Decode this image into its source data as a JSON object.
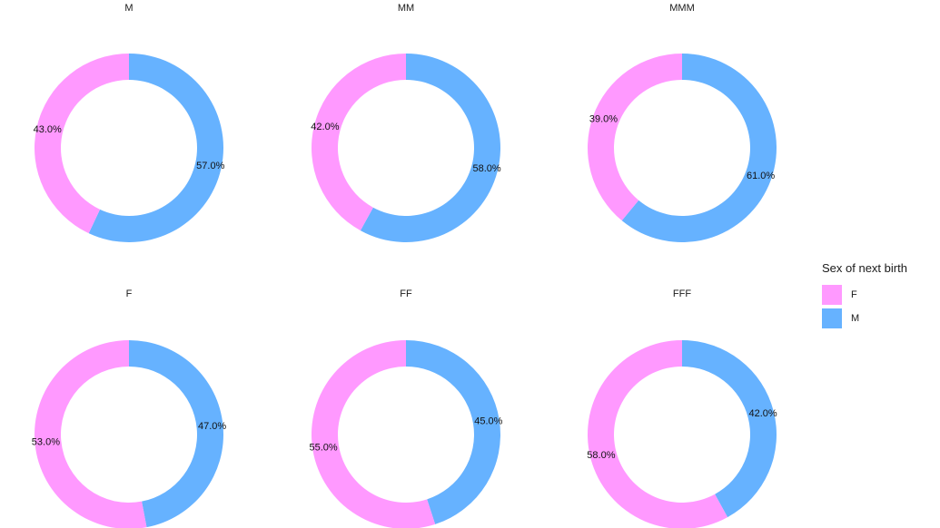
{
  "chart_data": {
    "type": "pie",
    "panels": [
      {
        "title": "M",
        "slices": [
          {
            "category": "F",
            "value": 43.0,
            "label": "43.0%"
          },
          {
            "category": "M",
            "value": 57.0,
            "label": "57.0%"
          }
        ]
      },
      {
        "title": "MM",
        "slices": [
          {
            "category": "F",
            "value": 42.0,
            "label": "42.0%"
          },
          {
            "category": "M",
            "value": 58.0,
            "label": "58.0%"
          }
        ]
      },
      {
        "title": "MMM",
        "slices": [
          {
            "category": "F",
            "value": 39.0,
            "label": "39.0%"
          },
          {
            "category": "M",
            "value": 61.0,
            "label": "61.0%"
          }
        ]
      },
      {
        "title": "F",
        "slices": [
          {
            "category": "F",
            "value": 53.0,
            "label": "53.0%"
          },
          {
            "category": "M",
            "value": 47.0,
            "label": "47.0%"
          }
        ]
      },
      {
        "title": "FF",
        "slices": [
          {
            "category": "F",
            "value": 55.0,
            "label": "55.0%"
          },
          {
            "category": "M",
            "value": 45.0,
            "label": "45.0%"
          }
        ]
      },
      {
        "title": "FFF",
        "slices": [
          {
            "category": "F",
            "value": 58.0,
            "label": "58.0%"
          },
          {
            "category": "M",
            "value": 42.0,
            "label": "42.0%"
          }
        ]
      }
    ],
    "legend": {
      "title": "Sex of next birth",
      "placement": "right",
      "items": [
        {
          "label": "F",
          "color": "#FF99FF"
        },
        {
          "label": "M",
          "color": "#66B2FF"
        }
      ]
    }
  }
}
